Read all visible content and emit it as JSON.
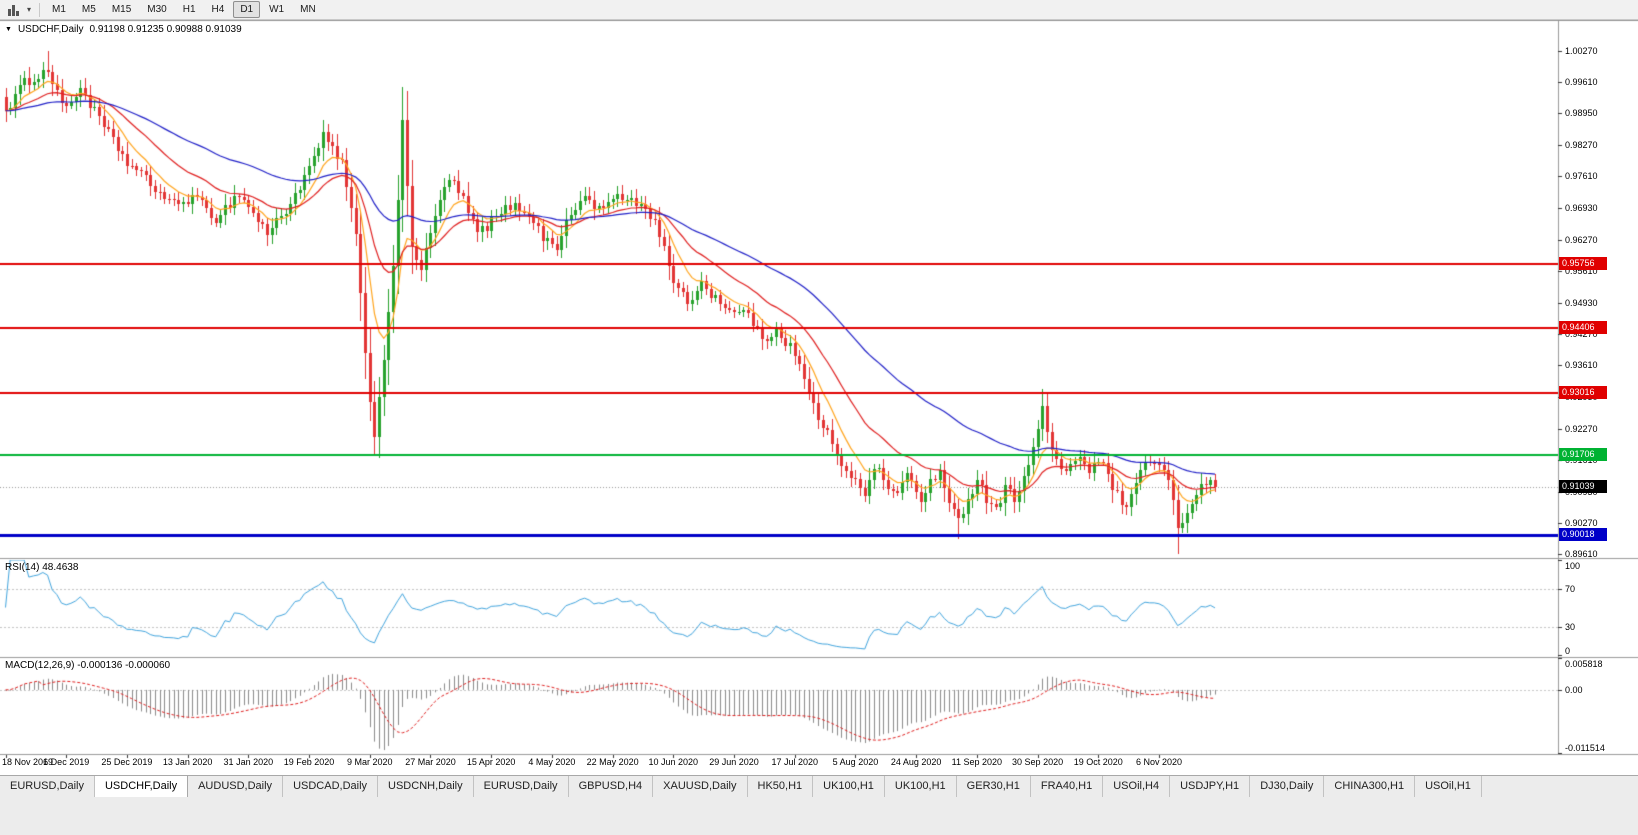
{
  "toolbar": {
    "timeframes": [
      "M1",
      "M5",
      "M15",
      "M30",
      "H1",
      "H4",
      "D1",
      "W1",
      "MN"
    ],
    "active_timeframe": "D1"
  },
  "chart": {
    "collapse_icon": "▼",
    "symbol_title": "USDCHF,Daily",
    "ohlc_text": "0.91198 0.91235 0.90988 0.91039"
  },
  "chart_data": {
    "type": "candlestick",
    "symbol": "USDCHF",
    "timeframe": "Daily",
    "ohlc": {
      "open": 0.91198,
      "high": 0.91235,
      "low": 0.90988,
      "close": 0.91039
    },
    "price_axis": {
      "top": 1.009,
      "bottom": 0.8955,
      "labels": [
        "1.00270",
        "0.99610",
        "0.98950",
        "0.98270",
        "0.97610",
        "0.96930",
        "0.96270",
        "0.95610",
        "0.94930",
        "0.94270",
        "0.93610",
        "0.92930",
        "0.92270",
        "0.91610",
        "0.90930",
        "0.90270",
        "0.89610"
      ]
    },
    "date_labels": [
      "18 Nov 2019",
      "6 Dec 2019",
      "25 Dec 2019",
      "13 Jan 2020",
      "31 Jan 2020",
      "19 Feb 2020",
      "9 Mar 2020",
      "27 Mar 2020",
      "15 Apr 2020",
      "4 May 2020",
      "22 May 2020",
      "10 Jun 2020",
      "29 Jun 2020",
      "17 Jul 2020",
      "5 Aug 2020",
      "24 Aug 2020",
      "11 Sep 2020",
      "30 Sep 2020",
      "19 Oct 2020",
      "6 Nov 2020"
    ],
    "tick_interval": 13,
    "candle_count": 260,
    "waypoints": [
      [
        0,
        0.99
      ],
      [
        4,
        0.996
      ],
      [
        9,
        0.9985
      ],
      [
        13,
        0.99
      ],
      [
        16,
        0.995
      ],
      [
        20,
        0.988
      ],
      [
        26,
        0.979
      ],
      [
        31,
        0.9745
      ],
      [
        36,
        0.97
      ],
      [
        40,
        0.9718
      ],
      [
        45,
        0.9672
      ],
      [
        50,
        0.9725
      ],
      [
        56,
        0.964
      ],
      [
        60,
        0.969
      ],
      [
        64,
        0.9755
      ],
      [
        68,
        0.9845
      ],
      [
        72,
        0.979
      ],
      [
        75,
        0.963
      ],
      [
        78,
        0.928
      ],
      [
        79,
        0.9215
      ],
      [
        81,
        0.938
      ],
      [
        83,
        0.956
      ],
      [
        85,
        0.987
      ],
      [
        87,
        0.962
      ],
      [
        89,
        0.956
      ],
      [
        92,
        0.968
      ],
      [
        95,
        0.976
      ],
      [
        98,
        0.971
      ],
      [
        101,
        0.964
      ],
      [
        104,
        0.9665
      ],
      [
        108,
        0.97
      ],
      [
        112,
        0.9685
      ],
      [
        115,
        0.963
      ],
      [
        118,
        0.9615
      ],
      [
        121,
        0.968
      ],
      [
        124,
        0.972
      ],
      [
        127,
        0.969
      ],
      [
        130,
        0.9712
      ],
      [
        134,
        0.9715
      ],
      [
        138,
        0.968
      ],
      [
        141,
        0.962
      ],
      [
        143,
        0.953
      ],
      [
        146,
        0.9495
      ],
      [
        149,
        0.9535
      ],
      [
        152,
        0.9505
      ],
      [
        156,
        0.947
      ],
      [
        159,
        0.9475
      ],
      [
        162,
        0.941
      ],
      [
        165,
        0.944
      ],
      [
        168,
        0.94
      ],
      [
        170,
        0.936
      ],
      [
        172,
        0.93
      ],
      [
        174,
        0.925
      ],
      [
        176,
        0.922
      ],
      [
        178,
        0.916
      ],
      [
        180,
        0.913
      ],
      [
        182,
        0.9125
      ],
      [
        184,
        0.909
      ],
      [
        186,
        0.915
      ],
      [
        188,
        0.912
      ],
      [
        190,
        0.9085
      ],
      [
        193,
        0.913
      ],
      [
        196,
        0.907
      ],
      [
        198,
        0.912
      ],
      [
        200,
        0.9135
      ],
      [
        202,
        0.906
      ],
      [
        204,
        0.9035
      ],
      [
        206,
        0.908
      ],
      [
        208,
        0.912
      ],
      [
        210,
        0.908
      ],
      [
        212,
        0.906
      ],
      [
        214,
        0.91
      ],
      [
        216,
        0.908
      ],
      [
        218,
        0.913
      ],
      [
        220,
        0.918
      ],
      [
        222,
        0.927
      ],
      [
        224,
        0.918
      ],
      [
        226,
        0.913
      ],
      [
        228,
        0.9155
      ],
      [
        230,
        0.9165
      ],
      [
        232,
        0.914
      ],
      [
        234,
        0.9155
      ],
      [
        236,
        0.913
      ],
      [
        238,
        0.9085
      ],
      [
        240,
        0.9055
      ],
      [
        242,
        0.91
      ],
      [
        244,
        0.9165
      ],
      [
        246,
        0.915
      ],
      [
        248,
        0.914
      ],
      [
        250,
        0.908
      ],
      [
        251,
        0.9005
      ],
      [
        252,
        0.9035
      ],
      [
        254,
        0.906
      ],
      [
        256,
        0.912
      ],
      [
        258,
        0.911
      ],
      [
        259,
        0.91039
      ]
    ],
    "pins": [
      {
        "i": 9,
        "high": 1.0027
      },
      {
        "i": 79,
        "low": 0.9186
      },
      {
        "i": 85,
        "high": 0.9899
      },
      {
        "i": 204,
        "low": 0.8993
      },
      {
        "i": 222,
        "high": 0.931
      },
      {
        "i": 240,
        "low": 0.9044
      },
      {
        "i": 251,
        "low": 0.8961
      }
    ],
    "hlines": [
      {
        "value": 0.95756,
        "label": "0.95756",
        "color": "#E00000",
        "width": 2
      },
      {
        "value": 0.94406,
        "label": "0.94406",
        "color": "#E00000",
        "width": 2
      },
      {
        "value": 0.93016,
        "label": "0.93016",
        "color": "#E00000",
        "width": 2
      },
      {
        "value": 0.91706,
        "label": "0.91706",
        "color": "#00B232",
        "width": 2
      },
      {
        "value": 0.90018,
        "label": "0.90018",
        "color": "#0000C8",
        "width": 3
      }
    ],
    "current_price": {
      "value": 0.91039,
      "label": "0.91039",
      "color": "#000000"
    },
    "moving_averages": [
      {
        "name": "fast",
        "period": 8,
        "color": "#FFA51E"
      },
      {
        "name": "medium",
        "period": 21,
        "color": "#E02020"
      },
      {
        "name": "slow",
        "period": 55,
        "color": "#2020C8"
      }
    ],
    "colors": {
      "bull": "#27A22D",
      "bear": "#E23535",
      "background": "#FFFFFF",
      "separator": "#9A9A9A",
      "axis_text": "#000000"
    },
    "rsi": {
      "label": "RSI(14) 48.4638",
      "period": 14,
      "value": 48.4638,
      "axis_labels": [
        "100",
        "70",
        "30",
        "0"
      ],
      "levels": [
        70,
        30
      ],
      "color": "#42A5DE"
    },
    "macd": {
      "label": "MACD(12,26,9) -0.000136 -0.000060",
      "fast": 12,
      "slow": 26,
      "signal": 9,
      "values": [
        -0.000136,
        -6e-05
      ],
      "axis_labels": [
        "0.005818",
        "0.00",
        "-0.011514"
      ],
      "scale_top": 0.005818,
      "scale_bottom": -0.011514,
      "hist_color": "#8C8C8C",
      "signal_color": "#E02020"
    }
  },
  "tabs": [
    {
      "label": "EURUSD,Daily",
      "active": false
    },
    {
      "label": "USDCHF,Daily",
      "active": true
    },
    {
      "label": "AUDUSD,Daily",
      "active": false
    },
    {
      "label": "USDCAD,Daily",
      "active": false
    },
    {
      "label": "USDCNH,Daily",
      "active": false
    },
    {
      "label": "EURUSD,Daily",
      "active": false
    },
    {
      "label": "GBPUSD,H4",
      "active": false
    },
    {
      "label": "XAUUSD,Daily",
      "active": false
    },
    {
      "label": "HK50,H1",
      "active": false
    },
    {
      "label": "UK100,H1",
      "active": false
    },
    {
      "label": "UK100,H1",
      "active": false
    },
    {
      "label": "GER30,H1",
      "active": false
    },
    {
      "label": "FRA40,H1",
      "active": false
    },
    {
      "label": "USOil,H4",
      "active": false
    },
    {
      "label": "USDJPY,H1",
      "active": false
    },
    {
      "label": "DJ30,Daily",
      "active": false
    },
    {
      "label": "CHINA300,H1",
      "active": false
    },
    {
      "label": "USOil,H1",
      "active": false
    }
  ]
}
